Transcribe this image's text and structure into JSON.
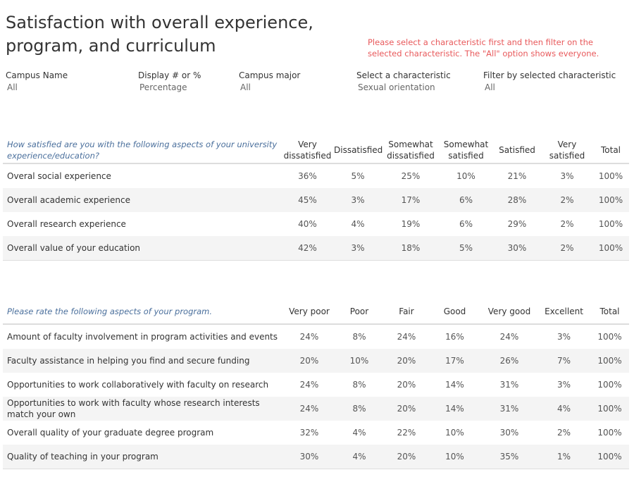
{
  "title": "Satisfaction with overall experience, program, and curriculum",
  "note": "Please select a characteristic first and then filter on the selected characteristic. The \"All\" option shows everyone.",
  "filters": [
    {
      "label": "Campus Name",
      "value": "All"
    },
    {
      "label": "Display # or %",
      "value": "Percentage"
    },
    {
      "label": "Campus major",
      "value": "All"
    },
    {
      "label": "Select a characteristic",
      "value": "Sexual orientation"
    },
    {
      "label": "Filter by selected characteristic",
      "value": "All"
    }
  ],
  "table1": {
    "question": "How satisfied are you with the following aspects of your university experience/education?",
    "columns": [
      "Very dissatisfied",
      "Dissatisfied",
      "Somewhat dissatisfied",
      "Somewhat satisfied",
      "Satisfied",
      "Very satisfied",
      "Total"
    ],
    "rows": [
      {
        "label": "Overal social experience",
        "values": [
          "36%",
          "5%",
          "25%",
          "10%",
          "21%",
          "3%",
          "100%"
        ]
      },
      {
        "label": "Overall academic experience",
        "values": [
          "45%",
          "3%",
          "17%",
          "6%",
          "28%",
          "2%",
          "100%"
        ]
      },
      {
        "label": "Overall research experience",
        "values": [
          "40%",
          "4%",
          "19%",
          "6%",
          "29%",
          "2%",
          "100%"
        ]
      },
      {
        "label": "Overall value of your education",
        "values": [
          "42%",
          "3%",
          "18%",
          "5%",
          "30%",
          "2%",
          "100%"
        ]
      }
    ]
  },
  "table2": {
    "question": "Please rate the following aspects of your program.",
    "columns": [
      "Very poor",
      "Poor",
      "Fair",
      "Good",
      "Very good",
      "Excellent",
      "Total"
    ],
    "rows": [
      {
        "label": "Amount of faculty involvement in program activities and events",
        "values": [
          "24%",
          "8%",
          "24%",
          "16%",
          "24%",
          "3%",
          "100%"
        ]
      },
      {
        "label": "Faculty assistance in helping you find and secure funding",
        "values": [
          "20%",
          "10%",
          "20%",
          "17%",
          "26%",
          "7%",
          "100%"
        ]
      },
      {
        "label": "Opportunities to work collaboratively with faculty on research",
        "values": [
          "24%",
          "8%",
          "20%",
          "14%",
          "31%",
          "3%",
          "100%"
        ]
      },
      {
        "label": "Opportunities to work with faculty whose research interests match your own",
        "values": [
          "24%",
          "8%",
          "20%",
          "14%",
          "31%",
          "4%",
          "100%"
        ]
      },
      {
        "label": "Overall quality of your graduate degree program",
        "values": [
          "32%",
          "4%",
          "22%",
          "10%",
          "30%",
          "2%",
          "100%"
        ]
      },
      {
        "label": "Quality of teaching in your program",
        "values": [
          "30%",
          "4%",
          "20%",
          "10%",
          "35%",
          "1%",
          "100%"
        ]
      }
    ]
  }
}
